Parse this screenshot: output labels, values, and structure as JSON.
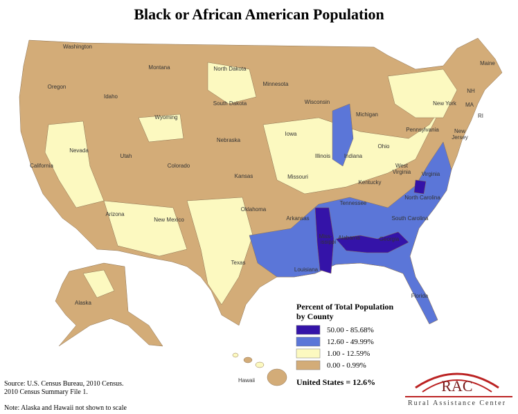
{
  "title": "Black or African American Population",
  "states": [
    "Washington",
    "Oregon",
    "California",
    "Nevada",
    "Idaho",
    "Montana",
    "Wyoming",
    "Utah",
    "Colorado",
    "Arizona",
    "New Mexico",
    "North Dakota",
    "South Dakota",
    "Nebraska",
    "Kansas",
    "Oklahoma",
    "Texas",
    "Minnesota",
    "Iowa",
    "Missouri",
    "Arkansas",
    "Louisiana",
    "Wisconsin",
    "Illinois",
    "Michigan",
    "Indiana",
    "Ohio",
    "Kentucky",
    "Tennessee",
    "Miss-",
    "issippi",
    "Alabama",
    "Georgia",
    "Florida",
    "South Carolina",
    "North Carolina",
    "Virginia",
    "West",
    "Virginia",
    "Pennsylvania",
    "New York",
    "Maine",
    "NH",
    "MA",
    "RI",
    "New",
    "Jersey",
    "Alaska",
    "Hawaii"
  ],
  "legend": {
    "title": [
      "Percent of Total Population",
      "by County"
    ],
    "items": [
      {
        "label": "50.00 - 85.68%",
        "color": "#3413a8"
      },
      {
        "label": "12.60 - 49.99%",
        "color": "#5b76d8"
      },
      {
        "label": "1.00 - 12.59%",
        "color": "#fcf9c0"
      },
      {
        "label": "0.00 - 0.99%",
        "color": "#d3ac78"
      }
    ],
    "summary": "United States = 12.6%"
  },
  "source": [
    "Source: U.S. Census Bureau, 2010 Census.",
    "2010 Census Summary File 1."
  ],
  "note": "Note: Alaska and Hawaii not shown to scale",
  "logo": {
    "abbr": "RAC",
    "name": "Rural Assistance Center"
  }
}
